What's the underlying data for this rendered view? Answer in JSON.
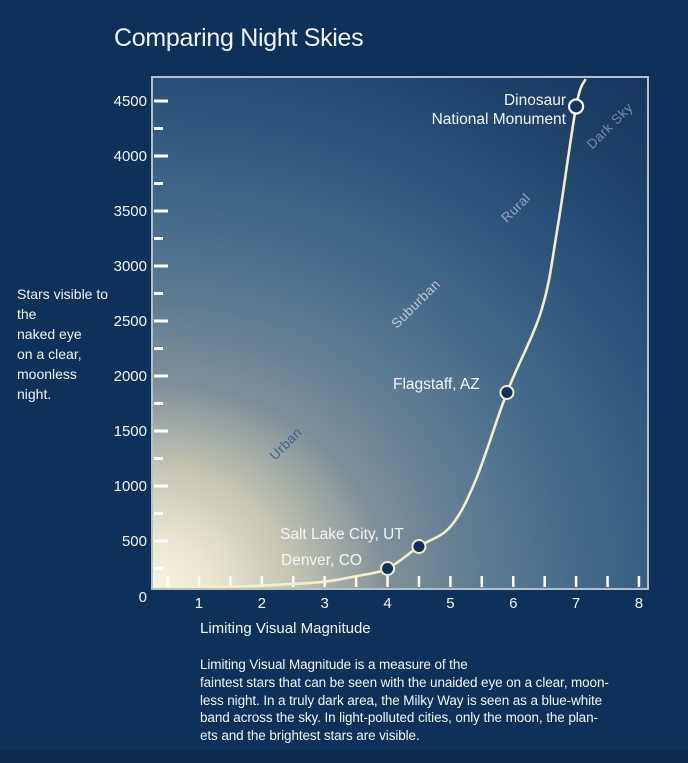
{
  "title": "Comparing Night Skies",
  "y_axis_note": "Stars visible to\nthe\nnaked eye\non a clear,\nmoonless\nnight.",
  "x_axis_label": "Limiting Visual Magnitude",
  "caption": "Limiting Visual Magnitude is a measure of the\nfaintest stars that can be seen with the unaided eye on a clear, moon-\nless night. In a truly dark area, the Milky Way is seen as a blue-white\nband across the sky. In light-polluted cities, only the moon, the plan-\nets and the brightest stars are visible.",
  "colors": {
    "page_background": "#0d3159",
    "bottom_strip": "#0b2b4c",
    "plot_border": "#b3bfcd",
    "curve": "#f2eecb",
    "tick": "#ffffff",
    "text": "#f2f5f8",
    "point_fill": "#12305a",
    "gradient_inner": "#f8f4de",
    "gradient_outer": "#17375f"
  },
  "chart_data": {
    "type": "line",
    "title": "Comparing Night Skies",
    "xlabel": "Limiting Visual Magnitude",
    "ylabel": "Stars visible to the naked eye on a clear, moonless night.",
    "xlim": [
      0.3,
      8.1
    ],
    "ylim": [
      0,
      4700
    ],
    "x_tick_labels": [
      1,
      2,
      3,
      4,
      5,
      6,
      7,
      8
    ],
    "x_minor_tick_step": 0.5,
    "y_tick_labels": [
      0,
      500,
      1000,
      1500,
      2000,
      2500,
      3000,
      3500,
      4000,
      4500
    ],
    "y_minor_tick_step": 250,
    "grid": "off",
    "curve": [
      [
        0.3,
        70
      ],
      [
        1,
        80
      ],
      [
        1.5,
        85
      ],
      [
        2,
        95
      ],
      [
        2.5,
        110
      ],
      [
        3,
        130
      ],
      [
        3.5,
        180
      ],
      [
        4,
        250
      ],
      [
        4.5,
        450
      ],
      [
        5,
        630
      ],
      [
        5.4,
        1050
      ],
      [
        5.9,
        1850
      ],
      [
        6.45,
        2600
      ],
      [
        6.7,
        3330
      ],
      [
        7.0,
        4450
      ],
      [
        7.15,
        4700
      ]
    ],
    "points": [
      {
        "label": "Denver, CO",
        "magnitude": 4.0,
        "stars": 250,
        "style": "filled"
      },
      {
        "label": "Salt Lake City, UT",
        "magnitude": 4.5,
        "stars": 450,
        "style": "filled"
      },
      {
        "label": "Flagstaff, AZ",
        "magnitude": 5.9,
        "stars": 1850,
        "style": "filled"
      },
      {
        "label": "Dinosaur National Monument",
        "magnitude": 7.0,
        "stars": 4450,
        "style": "open"
      }
    ],
    "regions": [
      {
        "label": "Urban",
        "color": "#3a648c"
      },
      {
        "label": "Suburban",
        "color": "#bcc6cf"
      },
      {
        "label": "Rural",
        "color": "#97a6bb"
      },
      {
        "label": "Dark Sky",
        "color": "#7488a3"
      }
    ]
  }
}
